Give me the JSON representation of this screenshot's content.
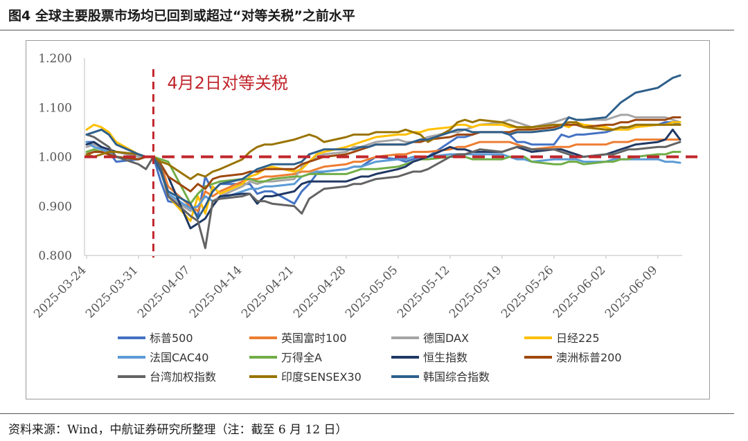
{
  "figure": {
    "title": "图4  全球主要股票市场均已回到或超过“对等关税”之前水平",
    "source": "资料来源：Wind，中航证券研究所整理（注：截至 6 月 12 日）"
  },
  "chart_data": {
    "type": "line",
    "title": "图4  全球主要股票市场均已回到或超过“对等关税”之前水平",
    "xlabel": "",
    "ylabel": "",
    "ylim": [
      0.8,
      1.2
    ],
    "yticks": [
      "0.800",
      "0.900",
      "1.000",
      "1.100",
      "1.200"
    ],
    "xticks": [
      "2025-03-24",
      "2025-03-31",
      "2025-04-07",
      "2025-04-14",
      "2025-04-21",
      "2025-04-28",
      "2025-05-05",
      "2025-05-12",
      "2025-05-19",
      "2025-05-26",
      "2025-06-02",
      "2025-06-09"
    ],
    "grid": false,
    "legend_position": "bottom",
    "x_dates": [
      "2025-03-24",
      "2025-03-25",
      "2025-03-26",
      "2025-03-27",
      "2025-03-28",
      "2025-03-31",
      "2025-04-01",
      "2025-04-02",
      "2025-04-03",
      "2025-04-04",
      "2025-04-07",
      "2025-04-08",
      "2025-04-09",
      "2025-04-10",
      "2025-04-11",
      "2025-04-14",
      "2025-04-15",
      "2025-04-16",
      "2025-04-17",
      "2025-04-18",
      "2025-04-21",
      "2025-04-22",
      "2025-04-23",
      "2025-04-24",
      "2025-04-25",
      "2025-04-28",
      "2025-04-29",
      "2025-04-30",
      "2025-05-01",
      "2025-05-02",
      "2025-05-05",
      "2025-05-06",
      "2025-05-07",
      "2025-05-08",
      "2025-05-09",
      "2025-05-12",
      "2025-05-13",
      "2025-05-14",
      "2025-05-15",
      "2025-05-16",
      "2025-05-19",
      "2025-05-20",
      "2025-05-21",
      "2025-05-22",
      "2025-05-23",
      "2025-05-26",
      "2025-05-27",
      "2025-05-28",
      "2025-05-29",
      "2025-05-30",
      "2025-06-02",
      "2025-06-03",
      "2025-06-04",
      "2025-06-05",
      "2025-06-06",
      "2025-06-09",
      "2025-06-10",
      "2025-06-11",
      "2025-06-12"
    ],
    "series": [
      {
        "name": "标普500",
        "color": "#4472c4",
        "values": [
          1.03,
          1.03,
          1.015,
          1.01,
          0.99,
          0.995,
          1.0,
          1.0,
          0.95,
          0.91,
          0.9,
          0.88,
          0.96,
          0.93,
          0.945,
          0.945,
          0.945,
          0.925,
          0.93,
          0.93,
          0.905,
          0.93,
          0.945,
          0.965,
          0.97,
          0.975,
          0.98,
          0.98,
          0.99,
          1.0,
          0.995,
          0.99,
          0.995,
          1.0,
          1.0,
          1.03,
          1.04,
          1.04,
          1.045,
          1.05,
          1.05,
          1.045,
          1.03,
          1.03,
          1.025,
          1.025,
          1.045,
          1.04,
          1.045,
          1.045,
          1.05,
          1.055,
          1.06,
          1.055,
          1.065,
          1.065,
          1.07,
          1.07,
          1.065
        ]
      },
      {
        "name": "英国富时100",
        "color": "#ed7d31",
        "values": [
          1.005,
          1.01,
          1.01,
          1.005,
          1.0,
          0.995,
          1.0,
          1.0,
          0.985,
          0.94,
          0.9,
          0.89,
          0.93,
          0.92,
          0.93,
          0.95,
          0.955,
          0.955,
          0.96,
          0.96,
          0.965,
          0.97,
          0.97,
          0.975,
          0.98,
          0.985,
          0.99,
          0.99,
          0.995,
          1.0,
          1.005,
          1.005,
          1.01,
          1.01,
          1.01,
          1.015,
          1.02,
          1.02,
          1.025,
          1.03,
          1.03,
          1.03,
          1.025,
          1.02,
          1.015,
          1.02,
          1.02,
          1.02,
          1.025,
          1.025,
          1.025,
          1.03,
          1.03,
          1.03,
          1.035,
          1.035,
          1.035,
          1.035,
          1.035
        ]
      },
      {
        "name": "德国DAX",
        "color": "#a5a5a5",
        "values": [
          1.02,
          1.025,
          1.02,
          1.015,
          1.01,
          1.0,
          1.0,
          1.0,
          0.97,
          0.92,
          0.89,
          0.9,
          0.92,
          0.91,
          0.92,
          0.94,
          0.95,
          0.945,
          0.95,
          0.95,
          0.955,
          0.98,
          0.99,
          1.0,
          1.005,
          1.01,
          1.02,
          1.02,
          1.025,
          1.03,
          1.035,
          1.03,
          1.03,
          1.035,
          1.04,
          1.05,
          1.05,
          1.055,
          1.06,
          1.065,
          1.07,
          1.075,
          1.07,
          1.065,
          1.06,
          1.07,
          1.075,
          1.08,
          1.075,
          1.075,
          1.075,
          1.08,
          1.085,
          1.085,
          1.08,
          1.08,
          1.08,
          1.075,
          1.07
        ]
      },
      {
        "name": "日经225",
        "color": "#ffc000",
        "values": [
          1.055,
          1.065,
          1.06,
          1.05,
          1.03,
          1.005,
          1.0,
          1.0,
          0.975,
          0.92,
          0.87,
          0.92,
          0.885,
          0.94,
          0.925,
          0.945,
          0.96,
          0.965,
          0.975,
          0.98,
          0.97,
          0.975,
          0.99,
          1.005,
          1.01,
          1.02,
          1.025,
          1.03,
          1.035,
          1.04,
          1.045,
          1.045,
          1.05,
          1.05,
          1.055,
          1.06,
          1.065,
          1.065,
          1.06,
          1.065,
          1.065,
          1.06,
          1.06,
          1.06,
          1.055,
          1.06,
          1.065,
          1.06,
          1.07,
          1.065,
          1.06,
          1.055,
          1.055,
          1.055,
          1.06,
          1.065,
          1.065,
          1.07,
          1.07
        ]
      },
      {
        "name": "法国CAC40",
        "color": "#5b9bd5",
        "values": [
          1.03,
          1.02,
          1.015,
          1.01,
          1.0,
          0.995,
          1.0,
          1.0,
          0.97,
          0.925,
          0.895,
          0.9,
          0.92,
          0.91,
          0.915,
          0.93,
          0.935,
          0.935,
          0.94,
          0.94,
          0.945,
          0.96,
          0.965,
          0.97,
          0.97,
          0.975,
          0.98,
          0.98,
          0.985,
          0.99,
          0.995,
          0.995,
          1.0,
          1.0,
          1.0,
          1.005,
          1.005,
          1.005,
          1.005,
          1.005,
          1.005,
          1.0,
          0.995,
          0.995,
          0.99,
          0.995,
          0.995,
          0.995,
          0.995,
          0.99,
          0.99,
          0.995,
          0.995,
          0.995,
          0.995,
          0.995,
          0.99,
          0.99,
          0.988
        ]
      },
      {
        "name": "万得全A",
        "color": "#70ad47",
        "values": [
          1.01,
          1.015,
          1.01,
          1.005,
          1.0,
          0.995,
          1.0,
          1.0,
          0.995,
          0.99,
          0.905,
          0.925,
          0.94,
          0.945,
          0.95,
          0.955,
          0.955,
          0.95,
          0.95,
          0.955,
          0.96,
          0.96,
          0.965,
          0.965,
          0.965,
          0.965,
          0.97,
          0.975,
          0.975,
          0.975,
          0.98,
          0.985,
          0.99,
          0.995,
          0.995,
          1.0,
          1.0,
          1.0,
          0.995,
          0.995,
          0.995,
          1.0,
          1.0,
          1.0,
          0.99,
          0.985,
          0.985,
          0.99,
          0.99,
          0.985,
          0.99,
          0.99,
          0.995,
          0.995,
          1.0,
          1.005,
          1.005,
          1.01,
          1.01
        ]
      },
      {
        "name": "恒生指数",
        "color": "#203864",
        "values": [
          1.025,
          1.03,
          1.02,
          1.015,
          1.01,
          1.005,
          1.0,
          1.0,
          0.985,
          0.96,
          0.855,
          0.865,
          0.875,
          0.9,
          0.92,
          0.925,
          0.925,
          0.905,
          0.92,
          0.92,
          0.93,
          0.945,
          0.95,
          0.95,
          0.95,
          0.95,
          0.955,
          0.96,
          0.96,
          0.965,
          0.975,
          0.98,
          0.99,
          0.995,
          1.0,
          1.02,
          1.015,
          1.015,
          1.01,
          1.01,
          1.01,
          1.015,
          1.02,
          1.015,
          1.01,
          1.015,
          1.015,
          1.01,
          1.005,
          1.0,
          1.005,
          1.01,
          1.015,
          1.02,
          1.025,
          1.03,
          1.035,
          1.055,
          1.035
        ]
      },
      {
        "name": "澳洲标普200",
        "color": "#9e480e",
        "values": [
          1.005,
          1.01,
          1.01,
          1.005,
          1.0,
          0.995,
          1.0,
          1.0,
          0.985,
          0.96,
          0.93,
          0.945,
          0.935,
          0.955,
          0.96,
          0.965,
          0.97,
          0.97,
          0.975,
          0.975,
          0.975,
          0.985,
          0.99,
          0.995,
          1.0,
          1.005,
          1.01,
          1.015,
          1.02,
          1.025,
          1.025,
          1.025,
          1.03,
          1.03,
          1.035,
          1.04,
          1.045,
          1.045,
          1.045,
          1.05,
          1.05,
          1.05,
          1.055,
          1.055,
          1.055,
          1.06,
          1.065,
          1.065,
          1.065,
          1.06,
          1.065,
          1.065,
          1.07,
          1.07,
          1.075,
          1.075,
          1.075,
          1.08,
          1.08
        ]
      },
      {
        "name": "台湾加权指数",
        "color": "#636363",
        "values": [
          1.045,
          1.04,
          1.03,
          1.02,
          1.0,
          0.985,
          0.975,
          1.0,
          0.98,
          0.92,
          0.88,
          0.87,
          0.815,
          0.91,
          0.915,
          0.92,
          0.925,
          0.91,
          0.91,
          0.905,
          0.9,
          0.885,
          0.915,
          0.925,
          0.935,
          0.94,
          0.945,
          0.945,
          0.95,
          0.955,
          0.96,
          0.965,
          0.97,
          0.97,
          0.975,
          1.0,
          1.005,
          1.005,
          1.01,
          1.015,
          1.01,
          1.015,
          1.02,
          1.02,
          1.015,
          1.015,
          1.01,
          1.005,
          1.0,
          1.0,
          1.005,
          1.005,
          1.01,
          1.015,
          1.015,
          1.02,
          1.02,
          1.025,
          1.03
        ]
      },
      {
        "name": "印度SENSEX30",
        "color": "#997300",
        "values": [
          1.005,
          1.0,
          1.005,
          1.01,
          1.01,
          1.005,
          1.0,
          1.0,
          0.99,
          0.985,
          0.955,
          0.965,
          0.96,
          0.97,
          0.975,
          0.995,
          1.01,
          1.02,
          1.025,
          1.025,
          1.035,
          1.04,
          1.045,
          1.04,
          1.03,
          1.04,
          1.045,
          1.045,
          1.045,
          1.05,
          1.05,
          1.055,
          1.05,
          1.045,
          1.03,
          1.055,
          1.07,
          1.075,
          1.07,
          1.075,
          1.07,
          1.065,
          1.06,
          1.06,
          1.06,
          1.065,
          1.065,
          1.07,
          1.07,
          1.06,
          1.055,
          1.055,
          1.06,
          1.06,
          1.065,
          1.065,
          1.065,
          1.065,
          1.065
        ]
      },
      {
        "name": "韩国综合指数",
        "color": "#2e5f8a",
        "values": [
          1.045,
          1.05,
          1.055,
          1.045,
          1.025,
          1.005,
          1.0,
          1.0,
          0.97,
          0.93,
          0.905,
          0.875,
          0.9,
          0.93,
          0.945,
          0.955,
          0.965,
          0.975,
          0.98,
          0.985,
          0.985,
          0.99,
          1.005,
          1.01,
          1.015,
          1.015,
          1.015,
          1.02,
          1.02,
          1.025,
          1.025,
          1.025,
          1.03,
          1.035,
          1.035,
          1.05,
          1.055,
          1.055,
          1.05,
          1.05,
          1.05,
          1.045,
          1.05,
          1.05,
          1.05,
          1.055,
          1.06,
          1.08,
          1.075,
          1.075,
          1.08,
          1.095,
          1.11,
          1.12,
          1.13,
          1.14,
          1.15,
          1.16,
          1.165
        ]
      }
    ],
    "reference_line": {
      "value": 1.0,
      "style": "dashed",
      "color": "#c0262c"
    },
    "event_marker": {
      "date": "2025-04-02",
      "label": "4月2日对等关税",
      "color": "#c0262c"
    }
  }
}
